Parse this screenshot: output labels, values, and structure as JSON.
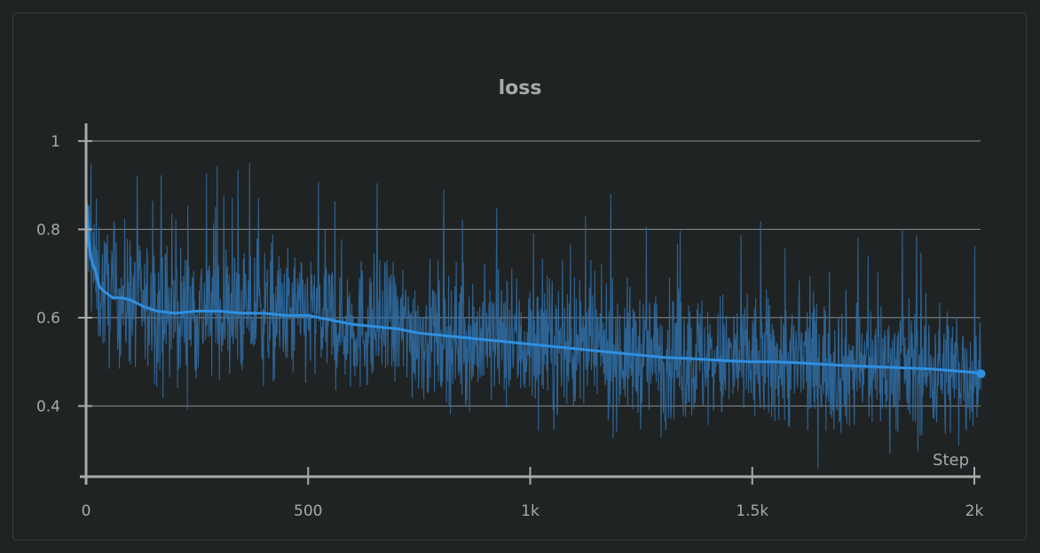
{
  "chart_data": {
    "type": "line",
    "title": "loss",
    "xlabel": "Step",
    "ylabel": "",
    "xlim": [
      0,
      2000
    ],
    "ylim": [
      0.24,
      1.04
    ],
    "x_ticks": [
      {
        "value": 0,
        "label": "0"
      },
      {
        "value": 500,
        "label": "500"
      },
      {
        "value": 1000,
        "label": "1k"
      },
      {
        "value": 1500,
        "label": "1.5k"
      },
      {
        "value": 2000,
        "label": "2k"
      }
    ],
    "y_ticks": [
      {
        "value": 1.0,
        "label": "1"
      },
      {
        "value": 0.8,
        "label": "0.8"
      },
      {
        "value": 0.6,
        "label": "0.6"
      },
      {
        "value": 0.4,
        "label": "0.4"
      }
    ],
    "grid": true,
    "series": [
      {
        "role": "smoothed",
        "color": "#2f8fe0",
        "x": [
          0,
          5,
          10,
          15,
          20,
          30,
          40,
          60,
          80,
          100,
          130,
          160,
          200,
          250,
          300,
          350,
          400,
          450,
          500,
          550,
          600,
          650,
          700,
          750,
          800,
          850,
          900,
          950,
          1000,
          1050,
          1100,
          1150,
          1200,
          1250,
          1300,
          1350,
          1400,
          1450,
          1500,
          1550,
          1600,
          1650,
          1700,
          1750,
          1800,
          1850,
          1900,
          1950,
          2000,
          2015
        ],
        "y": [
          0.87,
          0.78,
          0.74,
          0.72,
          0.71,
          0.67,
          0.66,
          0.645,
          0.645,
          0.64,
          0.625,
          0.615,
          0.61,
          0.615,
          0.615,
          0.61,
          0.61,
          0.605,
          0.605,
          0.595,
          0.585,
          0.58,
          0.575,
          0.565,
          0.56,
          0.555,
          0.55,
          0.545,
          0.54,
          0.535,
          0.53,
          0.525,
          0.52,
          0.515,
          0.51,
          0.508,
          0.505,
          0.502,
          0.5,
          0.5,
          0.498,
          0.495,
          0.492,
          0.49,
          0.488,
          0.486,
          0.484,
          0.48,
          0.476,
          0.473
        ]
      }
    ],
    "raw_series": {
      "role": "raw",
      "color": "#2f6fa8",
      "x_range": [
        0,
        2015
      ],
      "points": 2015,
      "spread": [
        0.25,
        0.96
      ],
      "note_style": "noisy"
    }
  }
}
